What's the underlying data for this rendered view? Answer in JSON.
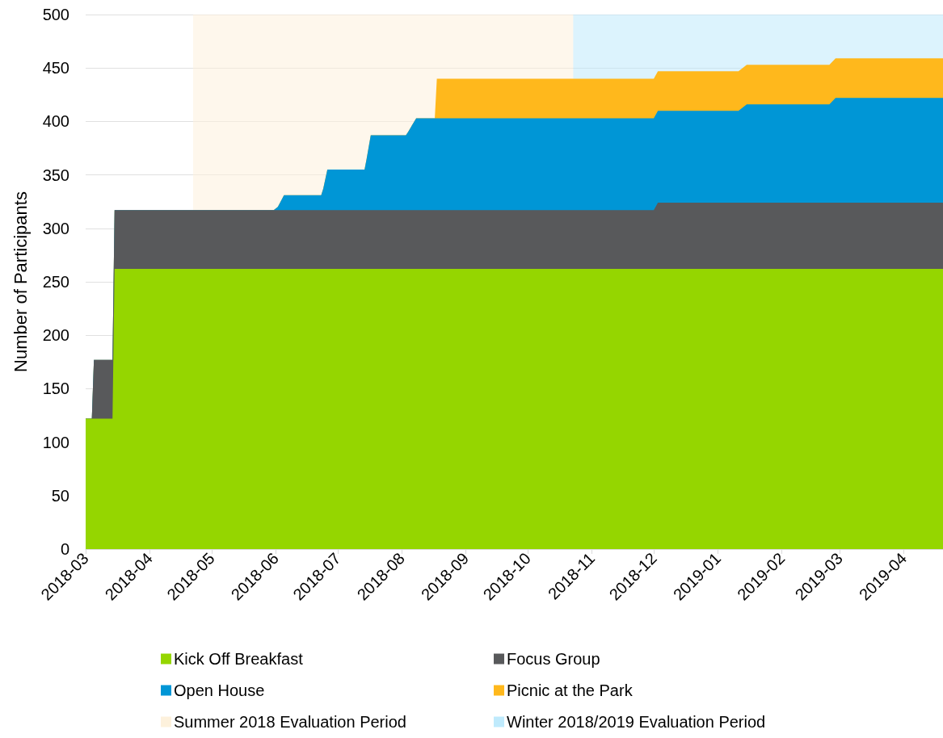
{
  "chart_data": {
    "type": "area",
    "stacked": true,
    "ylabel": "Number of Participants",
    "x": [
      "2018-03-01",
      "2018-03-04",
      "2018-03-05",
      "2018-03-14",
      "2018-03-15",
      "2018-05-31",
      "2018-06-02",
      "2018-06-05",
      "2018-06-23",
      "2018-06-24",
      "2018-06-26",
      "2018-07-14",
      "2018-07-15",
      "2018-07-17",
      "2018-08-03",
      "2018-08-04",
      "2018-08-08",
      "2018-08-17",
      "2018-08-18",
      "2018-12-01",
      "2018-12-03",
      "2019-01-11",
      "2019-01-15",
      "2019-02-24",
      "2019-02-27",
      "2019-04-20"
    ],
    "series": [
      {
        "name": "Kick Off Breakfast",
        "color": "#95d600",
        "values": [
          122,
          122,
          122,
          122,
          262,
          262,
          262,
          262,
          262,
          262,
          262,
          262,
          262,
          262,
          262,
          262,
          262,
          262,
          262,
          262,
          262,
          262,
          262,
          262,
          262,
          262
        ]
      },
      {
        "name": "Focus Group",
        "color": "#58595b",
        "values": [
          0,
          0,
          55,
          55,
          55,
          55,
          55,
          55,
          55,
          55,
          55,
          55,
          55,
          55,
          55,
          55,
          55,
          55,
          55,
          55,
          62,
          62,
          62,
          62,
          62,
          62
        ]
      },
      {
        "name": "Open House",
        "color": "#0096d6",
        "values": [
          0,
          0,
          0,
          0,
          0,
          0,
          3,
          14,
          14,
          20,
          38,
          38,
          48,
          70,
          70,
          73,
          86,
          86,
          86,
          86,
          86,
          86,
          92,
          92,
          98,
          98
        ]
      },
      {
        "name": "Picnic at the Park",
        "color": "#ffb81c",
        "values": [
          0,
          0,
          0,
          0,
          0,
          0,
          0,
          0,
          0,
          0,
          0,
          0,
          0,
          0,
          0,
          0,
          0,
          0,
          37,
          37,
          37,
          37,
          37,
          37,
          37,
          37
        ]
      }
    ],
    "bands": [
      {
        "axis": "x",
        "from": "2018-04-22",
        "to": "2018-10-23",
        "label": "Summer 2018 Evaluation Period",
        "color": "#fdf1dc"
      },
      {
        "axis": "x",
        "from": "2018-10-23",
        "to": "2019-04-20",
        "label": "Winter 2018/2019 Evaluation Period",
        "color": "#bfeafc"
      }
    ],
    "xlim": [
      "2018-03-01",
      "2019-04-20"
    ],
    "xticks": [
      "2018-03",
      "2018-04",
      "2018-05",
      "2018-06",
      "2018-07",
      "2018-08",
      "2018-09",
      "2018-10",
      "2018-11",
      "2018-12",
      "2019-01",
      "2019-02",
      "2019-03",
      "2019-04"
    ],
    "ylim": [
      0,
      500
    ],
    "yticks": [
      0,
      50,
      100,
      150,
      200,
      250,
      300,
      350,
      400,
      450,
      500
    ],
    "grid": "y",
    "legend": "bottom",
    "marker": "none"
  }
}
